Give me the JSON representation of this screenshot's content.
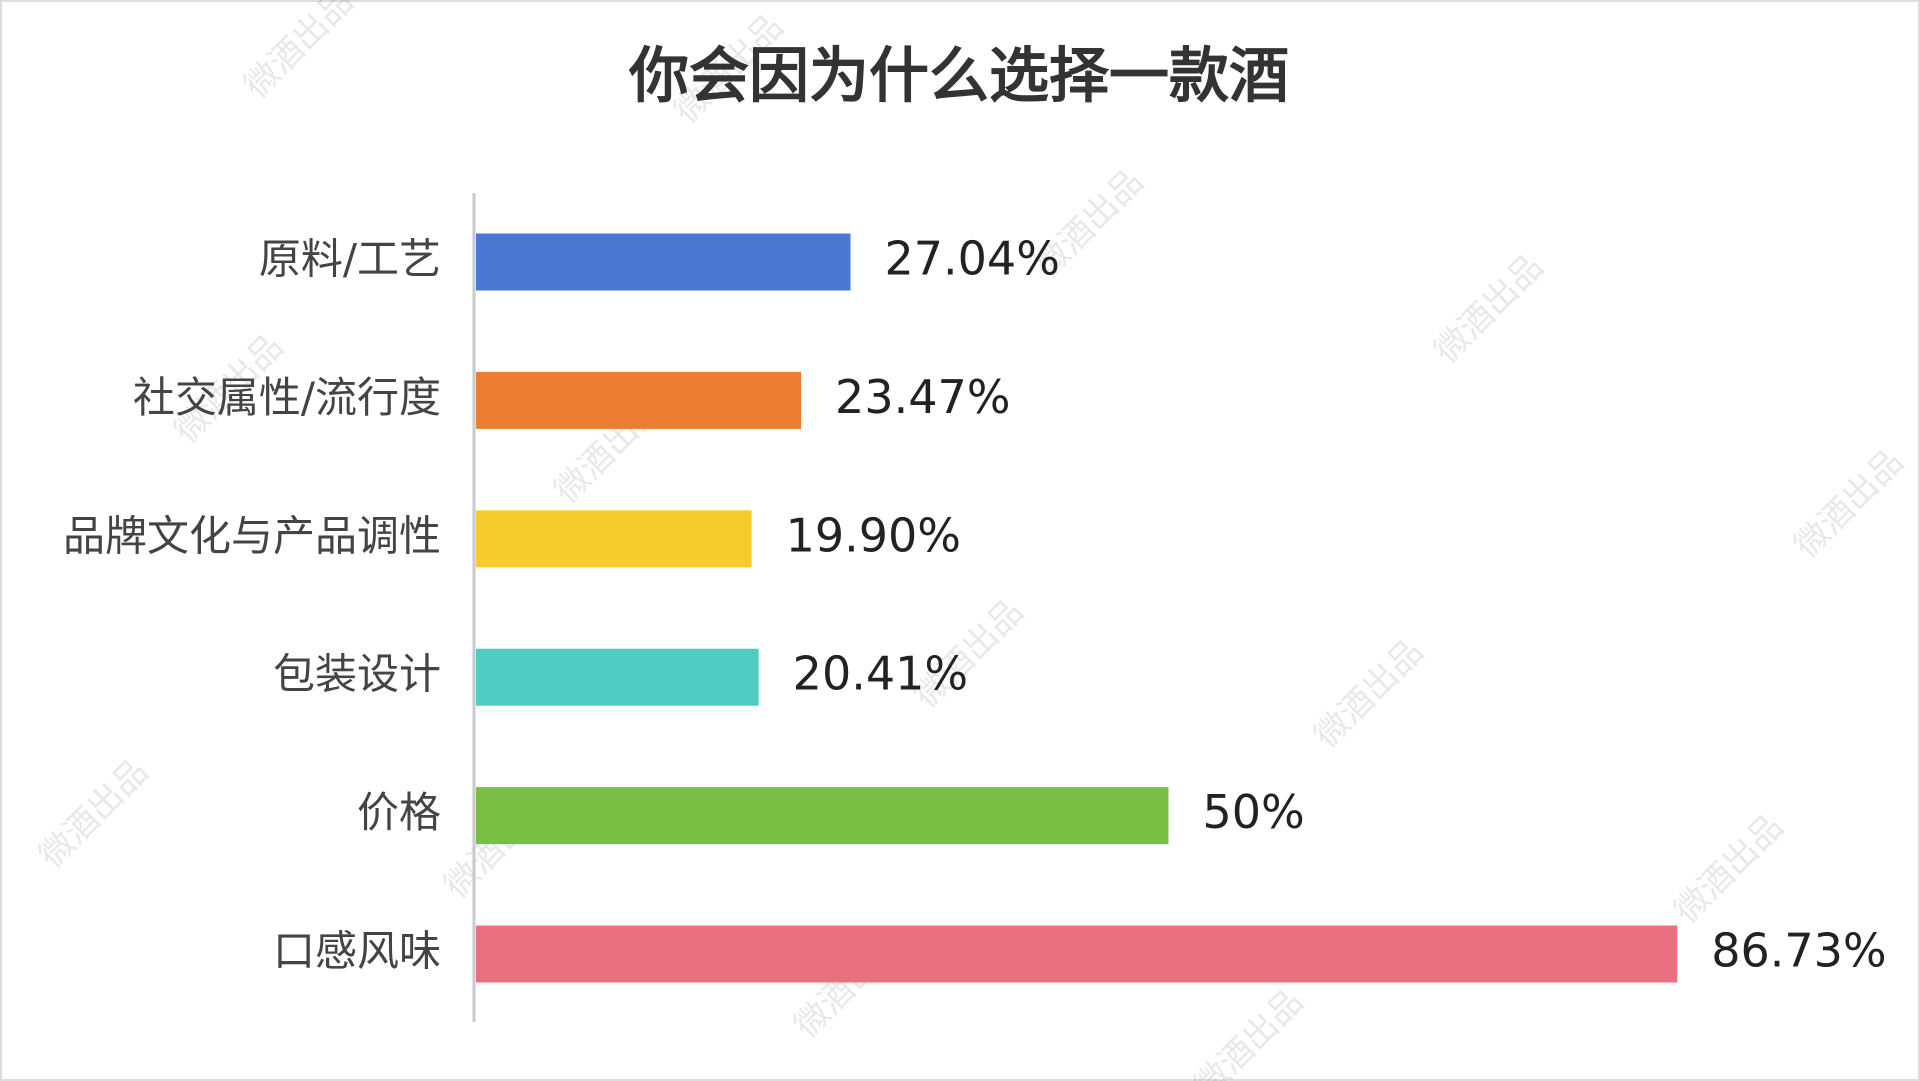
{
  "chart_data": {
    "type": "bar",
    "orientation": "horizontal",
    "title": "你会因为什么选择一款酒",
    "categories": [
      "原料/工艺",
      "社交属性/流行度",
      "品牌文化与产品调性",
      "包装设计",
      "价格",
      "口感风味"
    ],
    "values": [
      27.04,
      23.47,
      19.9,
      20.41,
      50,
      86.73
    ],
    "value_labels": [
      "27.04%",
      "23.47%",
      "19.90%",
      "20.41%",
      "50%",
      "86.73%"
    ],
    "colors": [
      "#4a78d4",
      "#ed7d31",
      "#f7cb2c",
      "#4fcdc3",
      "#77c043",
      "#e8707f"
    ],
    "watermark": "微酒出品"
  }
}
